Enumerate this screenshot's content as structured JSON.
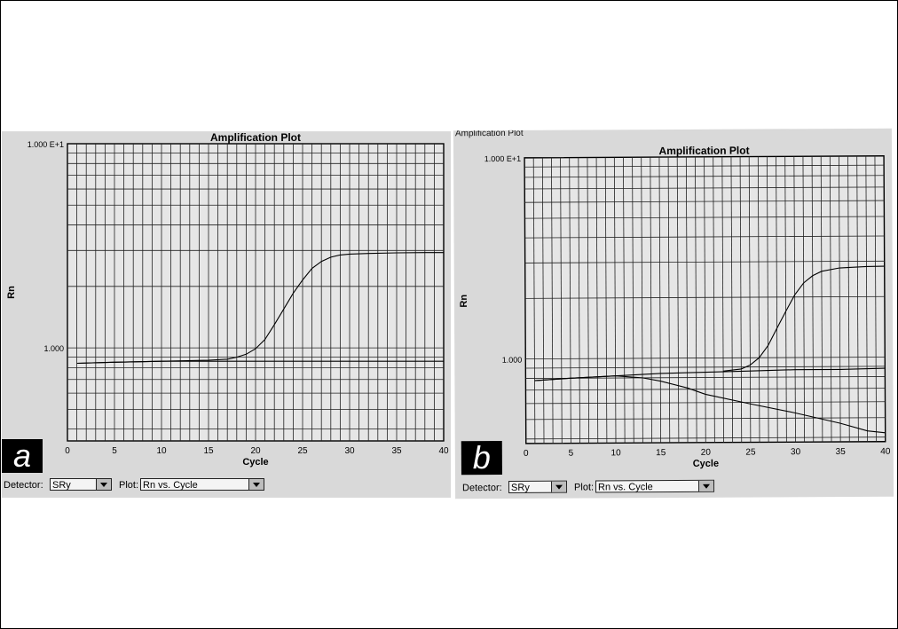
{
  "panels": [
    {
      "letter": "a",
      "title": "Amplification Plot",
      "outer_caption": "",
      "detector_label": "Detector:",
      "detector_value": "SRy",
      "plot_label": "Plot:",
      "plot_value": "Rn vs. Cycle"
    },
    {
      "letter": "b",
      "title": "Amplification Plot",
      "outer_caption": "Amplification Plot",
      "detector_label": "Detector:",
      "detector_value": "SRy",
      "plot_label": "Plot:",
      "plot_value": "Rn vs. Cycle"
    }
  ],
  "chart_data": [
    {
      "type": "line",
      "title": "Amplification Plot",
      "xlabel": "Cycle",
      "ylabel": "Rn",
      "xlim": [
        0,
        40
      ],
      "ylim": [
        0.35,
        10
      ],
      "yscale": "log",
      "xticks": [
        0,
        5,
        10,
        15,
        20,
        25,
        30,
        35,
        40
      ],
      "ytick_labels": [
        {
          "value": 10,
          "label": "1.000 E+1"
        },
        {
          "value": 1,
          "label": "1.000"
        }
      ],
      "grid": true,
      "legend": "none",
      "series": [
        {
          "x": [
            1,
            5,
            10,
            15,
            17,
            18,
            19,
            20,
            21,
            22,
            23,
            24,
            25,
            26,
            27,
            28,
            29,
            30,
            32,
            35,
            38,
            40
          ],
          "y": [
            0.84,
            0.85,
            0.86,
            0.87,
            0.88,
            0.9,
            0.93,
            0.99,
            1.1,
            1.3,
            1.55,
            1.85,
            2.15,
            2.45,
            2.65,
            2.78,
            2.85,
            2.88,
            2.9,
            2.92,
            2.93,
            2.93
          ]
        },
        {
          "x": [
            1,
            5,
            10,
            15,
            18,
            20,
            25,
            30,
            35,
            40
          ],
          "y": [
            0.84,
            0.85,
            0.86,
            0.86,
            0.86,
            0.86,
            0.86,
            0.86,
            0.86,
            0.86
          ]
        }
      ]
    },
    {
      "type": "line",
      "title": "Amplification Plot",
      "xlabel": "Cycle",
      "ylabel": "Rn",
      "xlim": [
        0,
        40
      ],
      "ylim": [
        0.38,
        10
      ],
      "yscale": "log",
      "xticks": [
        0,
        5,
        10,
        15,
        20,
        25,
        30,
        35,
        40
      ],
      "ytick_labels": [
        {
          "value": 10,
          "label": "1.000 E+1"
        },
        {
          "value": 1,
          "label": "1.000"
        }
      ],
      "grid": true,
      "legend": "none",
      "series": [
        {
          "x": [
            1,
            5,
            10,
            13,
            15,
            18,
            20,
            25,
            30,
            35,
            38,
            40
          ],
          "y": [
            0.78,
            0.8,
            0.82,
            0.8,
            0.77,
            0.71,
            0.66,
            0.59,
            0.53,
            0.47,
            0.43,
            0.42
          ]
        },
        {
          "x": [
            22,
            24,
            25,
            26,
            27,
            28,
            29,
            30,
            31,
            32,
            33,
            35,
            38,
            40
          ],
          "y": [
            0.86,
            0.88,
            0.92,
            1.0,
            1.15,
            1.4,
            1.7,
            2.05,
            2.35,
            2.55,
            2.68,
            2.78,
            2.82,
            2.83
          ]
        },
        {
          "x": [
            1,
            5,
            10,
            15,
            20,
            25,
            30,
            35,
            40
          ],
          "y": [
            0.78,
            0.8,
            0.82,
            0.84,
            0.85,
            0.86,
            0.87,
            0.87,
            0.88
          ]
        }
      ]
    }
  ]
}
